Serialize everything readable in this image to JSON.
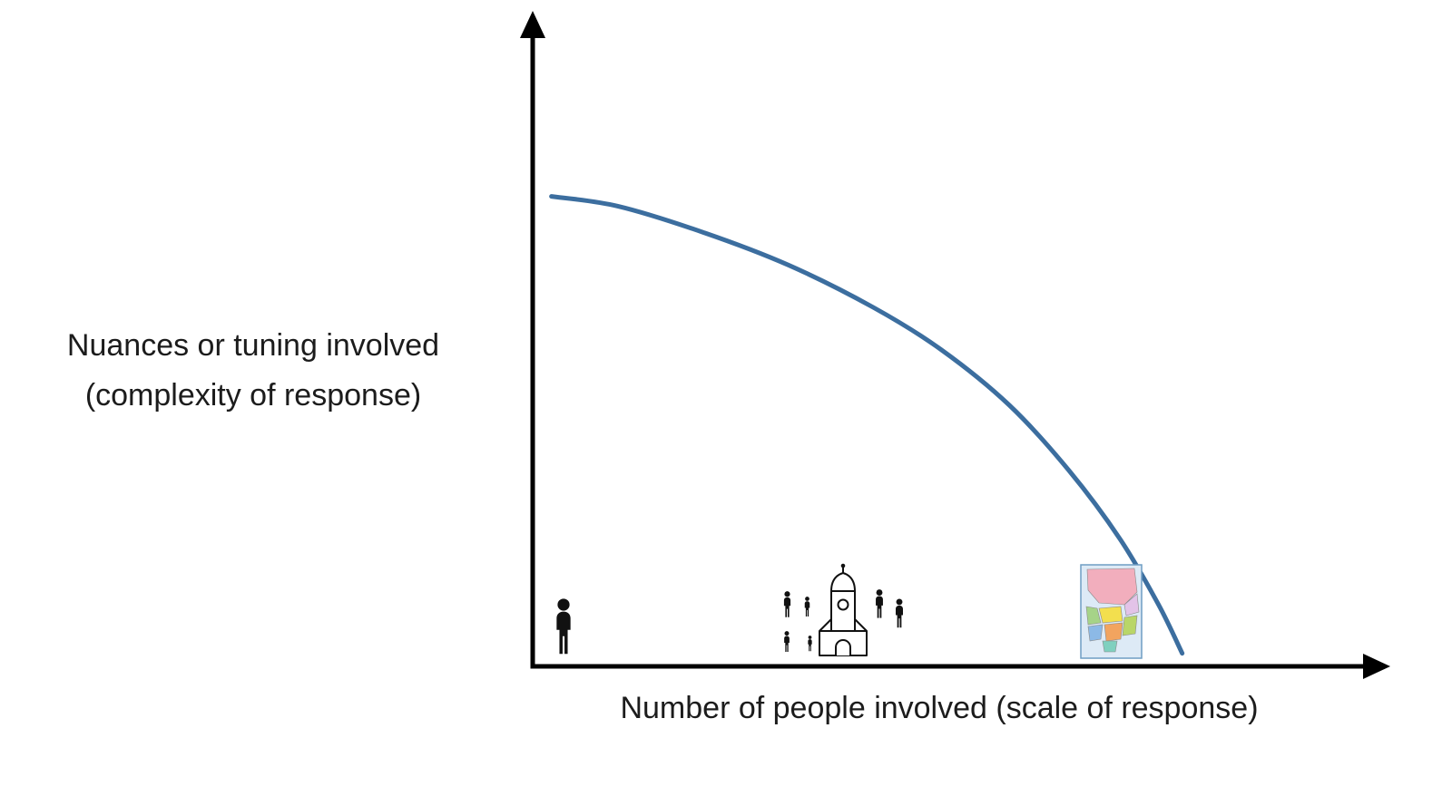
{
  "chart_data": {
    "type": "line",
    "title": "",
    "xlabel": "Number of people involved (scale of response)",
    "ylabel": "Nuances or tuning involved (complexity of response)",
    "ylabel_lines": [
      "Nuances or tuning involved",
      "(complexity of response)"
    ],
    "x_axis": {
      "min": 0,
      "max": 100,
      "ticks": [],
      "tick_labels": []
    },
    "y_axis": {
      "min": 0,
      "max": 100,
      "ticks": [],
      "tick_labels": []
    },
    "grid": false,
    "legend": false,
    "series": [
      {
        "name": "complexity of response vs scale of response",
        "color": "#3C6E9F",
        "stroke_width": 5,
        "points": [
          {
            "x": 2.2,
            "y": 72
          },
          {
            "x": 10,
            "y": 70.5
          },
          {
            "x": 20,
            "y": 66.5
          },
          {
            "x": 30,
            "y": 61.5
          },
          {
            "x": 40,
            "y": 55
          },
          {
            "x": 48,
            "y": 48.5
          },
          {
            "x": 56,
            "y": 40
          },
          {
            "x": 63,
            "y": 30
          },
          {
            "x": 69,
            "y": 19.5
          },
          {
            "x": 73.5,
            "y": 9.5
          },
          {
            "x": 76.3,
            "y": 2
          }
        ]
      }
    ],
    "annotations": [
      {
        "name": "single-person-icon",
        "axis_x": 4
      },
      {
        "name": "community-people-building-icon",
        "axis_x": 36
      },
      {
        "name": "region-map-icon",
        "axis_x": 67
      }
    ]
  },
  "axis_style": {
    "color": "#000000",
    "arrowheads": true
  },
  "icons": {
    "person_color": "#111111",
    "building_stroke": "#111111",
    "region_map": {
      "border": "#6f9dc4",
      "background": "#ddeaf6",
      "region_colors": [
        "#f2aebd",
        "#e3c3e8",
        "#f3df4e",
        "#a6d388",
        "#8cb9e6",
        "#f2a45f",
        "#b9d668",
        "#7fd0bf",
        "#f2aebd"
      ]
    }
  }
}
